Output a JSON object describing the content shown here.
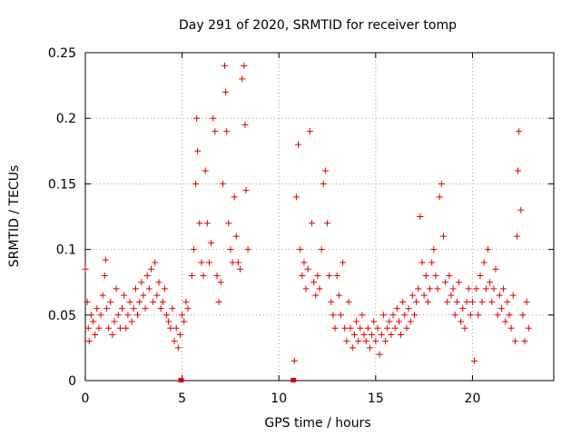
{
  "chart_data": {
    "type": "scatter",
    "title": "Day 291 of 2020, SRMTID for receiver tomp",
    "xlabel": "GPS time / hours",
    "ylabel": "SRMTID / TECUs",
    "xlim": [
      0,
      24.2
    ],
    "ylim": [
      0,
      0.25
    ],
    "xticks": [
      0,
      5,
      10,
      15,
      20
    ],
    "yticks": [
      0,
      0.05,
      0.1,
      0.15,
      0.2,
      0.25
    ],
    "xtick_labels": [
      "0",
      "5",
      "10",
      "15",
      "20"
    ],
    "ytick_labels": [
      "0",
      "0.05",
      "0.1",
      "0.15",
      "0.2",
      "0.25"
    ],
    "grid": true,
    "marker": "+",
    "series": [
      {
        "name": "SRMTID",
        "color": "#e00000",
        "points": [
          [
            0.0,
            0.085
          ],
          [
            0.1,
            0.06
          ],
          [
            0.15,
            0.04
          ],
          [
            0.2,
            0.03
          ],
          [
            0.3,
            0.05
          ],
          [
            0.4,
            0.045
          ],
          [
            0.5,
            0.035
          ],
          [
            0.6,
            0.055
          ],
          [
            0.7,
            0.04
          ],
          [
            0.8,
            0.05
          ],
          [
            0.9,
            0.065
          ],
          [
            1.0,
            0.08
          ],
          [
            1.05,
            0.092
          ],
          [
            1.1,
            0.055
          ],
          [
            1.2,
            0.04
          ],
          [
            1.3,
            0.06
          ],
          [
            1.4,
            0.035
          ],
          [
            1.5,
            0.045
          ],
          [
            1.6,
            0.07
          ],
          [
            1.7,
            0.05
          ],
          [
            1.8,
            0.04
          ],
          [
            1.9,
            0.055
          ],
          [
            2.0,
            0.065
          ],
          [
            2.1,
            0.04
          ],
          [
            2.2,
            0.05
          ],
          [
            2.3,
            0.06
          ],
          [
            2.4,
            0.045
          ],
          [
            2.5,
            0.055
          ],
          [
            2.6,
            0.07
          ],
          [
            2.7,
            0.05
          ],
          [
            2.8,
            0.06
          ],
          [
            2.9,
            0.075
          ],
          [
            3.0,
            0.065
          ],
          [
            3.1,
            0.055
          ],
          [
            3.2,
            0.08
          ],
          [
            3.3,
            0.07
          ],
          [
            3.4,
            0.085
          ],
          [
            3.5,
            0.06
          ],
          [
            3.6,
            0.09
          ],
          [
            3.7,
            0.065
          ],
          [
            3.8,
            0.075
          ],
          [
            3.9,
            0.055
          ],
          [
            4.0,
            0.06
          ],
          [
            4.1,
            0.07
          ],
          [
            4.2,
            0.05
          ],
          [
            4.3,
            0.045
          ],
          [
            4.4,
            0.04
          ],
          [
            4.5,
            0.055
          ],
          [
            4.6,
            0.03
          ],
          [
            4.7,
            0.04
          ],
          [
            4.8,
            0.025
          ],
          [
            4.9,
            0.035
          ],
          [
            5.0,
            0.05
          ],
          [
            5.1,
            0.045
          ],
          [
            5.2,
            0.06
          ],
          [
            5.3,
            0.055
          ],
          [
            5.5,
            0.08
          ],
          [
            5.6,
            0.1
          ],
          [
            5.7,
            0.15
          ],
          [
            5.75,
            0.2
          ],
          [
            5.8,
            0.175
          ],
          [
            5.9,
            0.12
          ],
          [
            6.0,
            0.09
          ],
          [
            6.1,
            0.08
          ],
          [
            6.2,
            0.16
          ],
          [
            6.3,
            0.12
          ],
          [
            6.4,
            0.09
          ],
          [
            6.5,
            0.105
          ],
          [
            6.6,
            0.2
          ],
          [
            6.7,
            0.19
          ],
          [
            6.8,
            0.08
          ],
          [
            6.9,
            0.06
          ],
          [
            7.0,
            0.075
          ],
          [
            7.1,
            0.15
          ],
          [
            7.2,
            0.24
          ],
          [
            7.25,
            0.22
          ],
          [
            7.3,
            0.19
          ],
          [
            7.4,
            0.12
          ],
          [
            7.5,
            0.1
          ],
          [
            7.6,
            0.09
          ],
          [
            7.7,
            0.14
          ],
          [
            7.8,
            0.11
          ],
          [
            7.9,
            0.09
          ],
          [
            8.0,
            0.085
          ],
          [
            8.1,
            0.23
          ],
          [
            8.2,
            0.24
          ],
          [
            8.25,
            0.195
          ],
          [
            8.3,
            0.145
          ],
          [
            8.4,
            0.1
          ],
          [
            10.8,
            0.015
          ],
          [
            10.9,
            0.14
          ],
          [
            11.0,
            0.18
          ],
          [
            11.1,
            0.1
          ],
          [
            11.2,
            0.08
          ],
          [
            11.3,
            0.09
          ],
          [
            11.4,
            0.07
          ],
          [
            11.5,
            0.085
          ],
          [
            11.6,
            0.19
          ],
          [
            11.7,
            0.12
          ],
          [
            11.8,
            0.075
          ],
          [
            11.9,
            0.065
          ],
          [
            12.0,
            0.08
          ],
          [
            12.1,
            0.07
          ],
          [
            12.2,
            0.1
          ],
          [
            12.3,
            0.15
          ],
          [
            12.4,
            0.16
          ],
          [
            12.5,
            0.12
          ],
          [
            12.6,
            0.08
          ],
          [
            12.7,
            0.06
          ],
          [
            12.8,
            0.05
          ],
          [
            12.9,
            0.04
          ],
          [
            13.0,
            0.08
          ],
          [
            13.1,
            0.065
          ],
          [
            13.2,
            0.05
          ],
          [
            13.3,
            0.09
          ],
          [
            13.4,
            0.04
          ],
          [
            13.5,
            0.03
          ],
          [
            13.6,
            0.06
          ],
          [
            13.7,
            0.04
          ],
          [
            13.8,
            0.025
          ],
          [
            13.9,
            0.035
          ],
          [
            14.0,
            0.045
          ],
          [
            14.1,
            0.03
          ],
          [
            14.2,
            0.04
          ],
          [
            14.3,
            0.05
          ],
          [
            14.4,
            0.035
          ],
          [
            14.5,
            0.03
          ],
          [
            14.6,
            0.04
          ],
          [
            14.7,
            0.025
          ],
          [
            14.8,
            0.035
          ],
          [
            14.9,
            0.045
          ],
          [
            15.0,
            0.03
          ],
          [
            15.1,
            0.04
          ],
          [
            15.2,
            0.02
          ],
          [
            15.3,
            0.035
          ],
          [
            15.4,
            0.05
          ],
          [
            15.5,
            0.03
          ],
          [
            15.6,
            0.04
          ],
          [
            15.7,
            0.045
          ],
          [
            15.8,
            0.035
          ],
          [
            15.9,
            0.05
          ],
          [
            16.0,
            0.04
          ],
          [
            16.1,
            0.055
          ],
          [
            16.2,
            0.045
          ],
          [
            16.3,
            0.035
          ],
          [
            16.4,
            0.06
          ],
          [
            16.5,
            0.05
          ],
          [
            16.6,
            0.04
          ],
          [
            16.7,
            0.055
          ],
          [
            16.8,
            0.045
          ],
          [
            16.9,
            0.065
          ],
          [
            17.0,
            0.05
          ],
          [
            17.1,
            0.06
          ],
          [
            17.2,
            0.07
          ],
          [
            17.3,
            0.125
          ],
          [
            17.4,
            0.09
          ],
          [
            17.5,
            0.065
          ],
          [
            17.6,
            0.08
          ],
          [
            17.7,
            0.06
          ],
          [
            17.8,
            0.07
          ],
          [
            17.9,
            0.09
          ],
          [
            18.0,
            0.1
          ],
          [
            18.1,
            0.08
          ],
          [
            18.2,
            0.07
          ],
          [
            18.3,
            0.14
          ],
          [
            18.4,
            0.15
          ],
          [
            18.5,
            0.11
          ],
          [
            18.6,
            0.075
          ],
          [
            18.7,
            0.06
          ],
          [
            18.8,
            0.08
          ],
          [
            18.9,
            0.065
          ],
          [
            19.0,
            0.07
          ],
          [
            19.1,
            0.05
          ],
          [
            19.2,
            0.06
          ],
          [
            19.3,
            0.075
          ],
          [
            19.4,
            0.045
          ],
          [
            19.5,
            0.055
          ],
          [
            19.6,
            0.04
          ],
          [
            19.7,
            0.06
          ],
          [
            19.8,
            0.07
          ],
          [
            19.9,
            0.05
          ],
          [
            20.0,
            0.06
          ],
          [
            20.1,
            0.015
          ],
          [
            20.2,
            0.07
          ],
          [
            20.3,
            0.05
          ],
          [
            20.4,
            0.08
          ],
          [
            20.5,
            0.06
          ],
          [
            20.6,
            0.09
          ],
          [
            20.7,
            0.07
          ],
          [
            20.8,
            0.1
          ],
          [
            20.9,
            0.075
          ],
          [
            21.0,
            0.06
          ],
          [
            21.1,
            0.07
          ],
          [
            21.2,
            0.085
          ],
          [
            21.3,
            0.05
          ],
          [
            21.4,
            0.065
          ],
          [
            21.5,
            0.055
          ],
          [
            21.6,
            0.07
          ],
          [
            21.7,
            0.045
          ],
          [
            21.8,
            0.06
          ],
          [
            21.9,
            0.05
          ],
          [
            22.0,
            0.04
          ],
          [
            22.1,
            0.065
          ],
          [
            22.2,
            0.03
          ],
          [
            22.3,
            0.11
          ],
          [
            22.35,
            0.16
          ],
          [
            22.4,
            0.19
          ],
          [
            22.5,
            0.13
          ],
          [
            22.6,
            0.05
          ],
          [
            22.7,
            0.03
          ],
          [
            22.8,
            0.06
          ],
          [
            22.9,
            0.04
          ]
        ]
      }
    ],
    "zero_markers": [
      4.95,
      10.75
    ]
  }
}
